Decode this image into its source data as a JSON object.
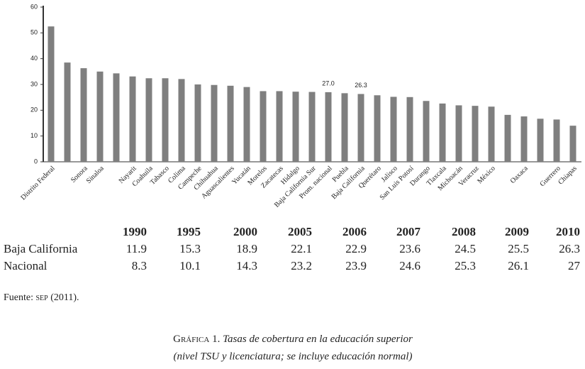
{
  "chart_data": {
    "type": "bar",
    "categories": [
      "Distrito Federal",
      null,
      "Sonora",
      "Sinaloa",
      null,
      "Nayarit",
      "Coahuila",
      "Tabasco",
      "Colima",
      "Campeche",
      "Chihuahua",
      "Aguascalientes",
      "Yucatán",
      "Morelos",
      "Zacatecas",
      "Hidalgo",
      "Baja California Sur",
      "Prom. nacional",
      "Puebla",
      "Baja California",
      "Querétaro",
      "Jalisco",
      "San Luis Potosí",
      "Durango",
      "Tlaxcala",
      "Michoacán",
      "Veracruz",
      "México",
      null,
      "Oaxaca",
      null,
      "Guerrero",
      "Chiapas"
    ],
    "values": [
      52.5,
      38.5,
      36.3,
      35,
      34.3,
      33.1,
      32.4,
      32.4,
      32.1,
      30,
      29.8,
      29.5,
      29,
      27.4,
      27.4,
      27.2,
      27.1,
      27.0,
      26.6,
      26.3,
      25.8,
      25.2,
      25.1,
      23.6,
      22.6,
      21.9,
      21.7,
      21.4,
      18.2,
      17.6,
      16.7,
      16.4,
      14
    ],
    "value_labels": [
      null,
      null,
      null,
      null,
      null,
      null,
      null,
      null,
      null,
      null,
      null,
      null,
      null,
      null,
      null,
      null,
      null,
      "27.0",
      null,
      "26.3",
      null,
      null,
      null,
      null,
      null,
      null,
      null,
      null,
      null,
      null,
      null,
      null,
      null
    ],
    "color": "#7f7f7f",
    "ylim": [
      0,
      60
    ],
    "yticks": [
      0,
      10,
      20,
      30,
      40,
      50,
      60
    ],
    "grid": false
  },
  "table": {
    "header": [
      1990,
      1995,
      2000,
      2005,
      2006,
      2007,
      2008,
      2009,
      2010
    ],
    "rows": [
      [
        "Baja California",
        11.9,
        15.3,
        18.9,
        22.1,
        22.9,
        23.6,
        24.5,
        25.5,
        26.3
      ],
      [
        "Nacional",
        8.3,
        10.1,
        14.3,
        23.2,
        23.9,
        24.6,
        25.3,
        26.1,
        27
      ]
    ]
  },
  "source": {
    "prefix": "Fuente:",
    "org": "sep",
    "suffix": "(2011)."
  },
  "caption": {
    "label": "Gráfica 1.",
    "title": "Tasas de cobertura en la educación superior",
    "subtitle": "(nivel TSU y licenciatura; se incluye educación normal)"
  }
}
